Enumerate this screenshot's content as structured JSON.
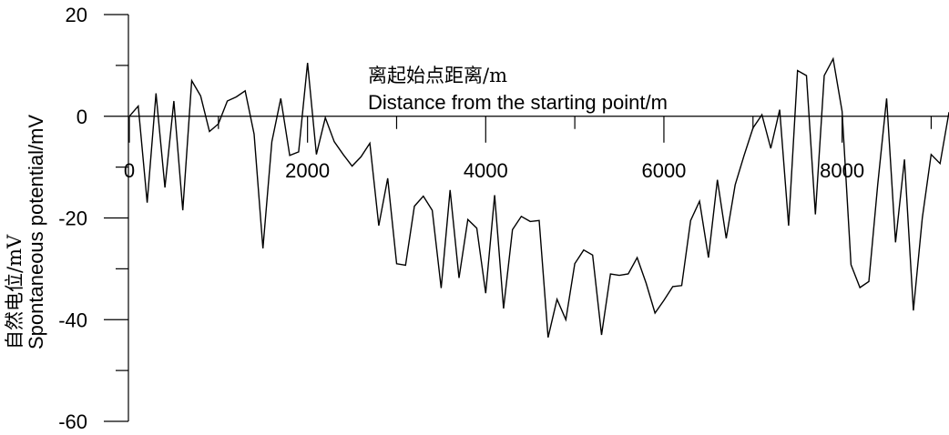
{
  "chart_data": {
    "type": "line",
    "xlabel_cn": "离起始点距离/m",
    "xlabel_en": "Distance from the starting point/m",
    "ylabel_cn": "自然电位/mV",
    "ylabel_en": "Spontaneous potential/mV",
    "xlim": [
      0,
      9200
    ],
    "ylim": [
      -60,
      20
    ],
    "x_ticks": [
      0,
      2000,
      4000,
      6000,
      8000
    ],
    "x_tick_labels": [
      "0",
      "2000",
      "4000",
      "6000",
      "8000"
    ],
    "y_ticks": [
      -60,
      -40,
      -20,
      0,
      20
    ],
    "y_tick_labels": [
      "-60",
      "-40",
      "-20",
      "0",
      "20"
    ],
    "grid": false,
    "series": [
      {
        "x": [
          0,
          100,
          200,
          300,
          400,
          500,
          600,
          700,
          800,
          900,
          1000,
          1100,
          1200,
          1300,
          1400,
          1500,
          1600,
          1700,
          1800,
          1900,
          2000,
          2100,
          2200,
          2300,
          2400,
          2500,
          2600,
          2700,
          2800,
          2900,
          3000,
          3100,
          3200,
          3300,
          3400,
          3500,
          3600,
          3700,
          3800,
          3900,
          4000,
          4100,
          4200,
          4300,
          4400,
          4500,
          4600,
          4700,
          4800,
          4900,
          5000,
          5100,
          5200,
          5300,
          5400,
          5500,
          5600,
          5700,
          5800,
          5900,
          6000,
          6100,
          6200,
          6300,
          6400,
          6500,
          6600,
          6700,
          6800,
          6900,
          7000,
          7100,
          7200,
          7300,
          7400,
          7500,
          7600,
          7700,
          7800,
          7900,
          8000,
          8100,
          8200,
          8300,
          8400,
          8500,
          8600,
          8700,
          8800,
          8900,
          9000,
          9100,
          9200
        ],
        "values": [
          0,
          2,
          -17,
          4.5,
          -14,
          3,
          -18.5,
          7,
          4,
          -3,
          -1.5,
          3,
          3.8,
          5,
          -3.5,
          -26,
          -5,
          3.5,
          -7.7,
          -7,
          10.5,
          -7.5,
          -0.3,
          -5,
          -7.5,
          -9.8,
          -8,
          -5.3,
          -21.5,
          -12.2,
          -29,
          -29.3,
          -17.7,
          -15.7,
          -18.5,
          -33.8,
          -14.5,
          -31.8,
          -20.3,
          -22,
          -34.8,
          -15.5,
          -37.8,
          -22.3,
          -19.7,
          -20.7,
          -20.5,
          -43.5,
          -36,
          -40,
          -29,
          -26.3,
          -27.3,
          -43,
          -31,
          -31.3,
          -31,
          -27.8,
          -32.8,
          -38.7,
          -36.2,
          -33.5,
          -33.3,
          -20.5,
          -16.7,
          -27.8,
          -12.5,
          -24,
          -13.5,
          -7.7,
          -2.3,
          0.3,
          -6.3,
          1.3,
          -21.5,
          9,
          8,
          -19.3,
          8,
          11.3,
          1,
          -29.2,
          -33.7,
          -32.5,
          -13.5,
          3.5,
          -24.8,
          -8.5,
          -38.2,
          -20,
          -7.5,
          -9.3,
          0.8
        ]
      }
    ]
  }
}
